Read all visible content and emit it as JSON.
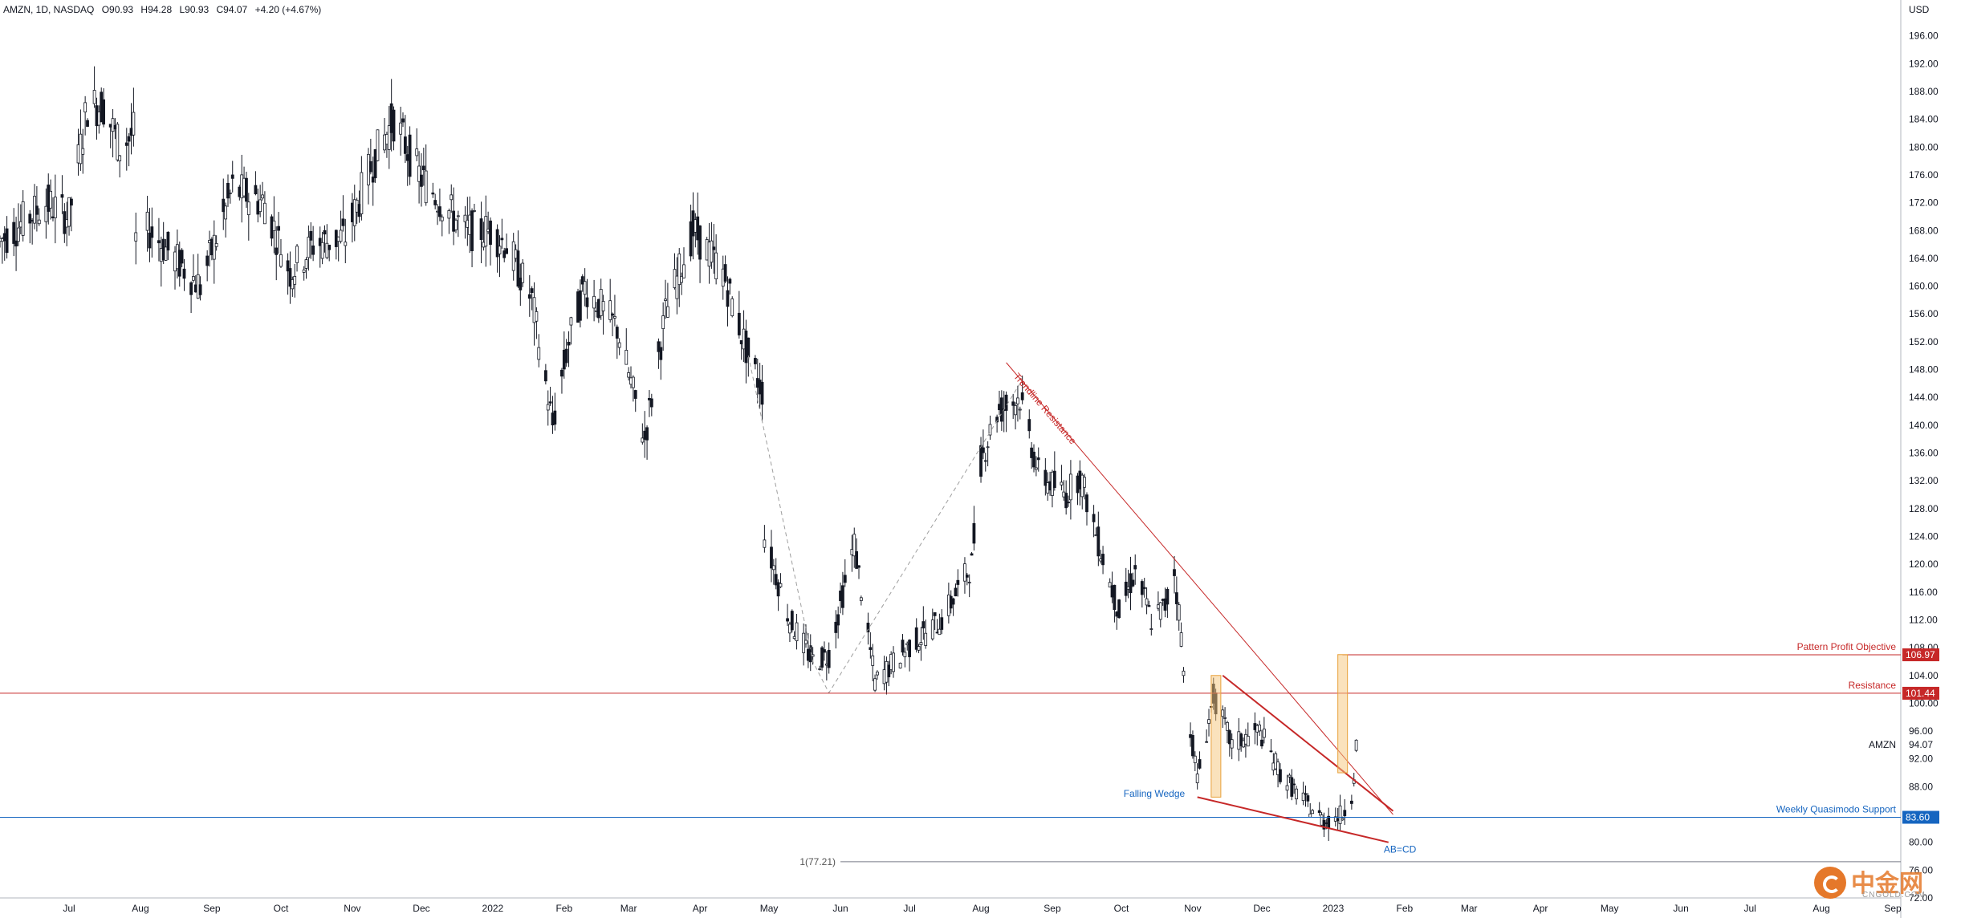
{
  "header": {
    "symbol": "AMZN, 1D, NASDAQ",
    "open": "O90.93",
    "high": "H94.28",
    "low": "L90.93",
    "close": "C94.07",
    "change": "+4.20 (+4.67%)"
  },
  "logo": {
    "name": "中金网",
    "sub": "CNGOLD.COM"
  },
  "colors": {
    "candle": "#131722",
    "resistance": "#c62828",
    "support": "#1565c0",
    "highlight": "#f5c57a",
    "guide": "#9e9e9e"
  },
  "chart_data": {
    "type": "candlestick",
    "ylabel": "USD",
    "ylim": [
      72,
      200
    ],
    "yticks": [
      "196.00",
      "192.00",
      "188.00",
      "184.00",
      "180.00",
      "176.00",
      "172.00",
      "168.00",
      "164.00",
      "160.00",
      "156.00",
      "152.00",
      "148.00",
      "144.00",
      "140.00",
      "136.00",
      "132.00",
      "128.00",
      "124.00",
      "120.00",
      "116.00",
      "112.00",
      "108.00",
      "104.00",
      "100.00",
      "96.00",
      "92.00",
      "88.00",
      "84.00",
      "80.00",
      "76.00",
      "72.00"
    ],
    "xticks": [
      {
        "label": "Jul",
        "date": "2021-07-01"
      },
      {
        "label": "Aug",
        "date": "2021-08-01"
      },
      {
        "label": "Sep",
        "date": "2021-09-01"
      },
      {
        "label": "Oct",
        "date": "2021-10-01"
      },
      {
        "label": "Nov",
        "date": "2021-11-01"
      },
      {
        "label": "Dec",
        "date": "2021-12-01"
      },
      {
        "label": "2022",
        "date": "2022-01-01"
      },
      {
        "label": "Feb",
        "date": "2022-02-01"
      },
      {
        "label": "Mar",
        "date": "2022-03-01"
      },
      {
        "label": "Apr",
        "date": "2022-04-01"
      },
      {
        "label": "May",
        "date": "2022-05-01"
      },
      {
        "label": "Jun",
        "date": "2022-06-01"
      },
      {
        "label": "Jul",
        "date": "2022-07-01"
      },
      {
        "label": "Aug",
        "date": "2022-08-01"
      },
      {
        "label": "Sep",
        "date": "2022-09-01"
      },
      {
        "label": "Oct",
        "date": "2022-10-01"
      },
      {
        "label": "Nov",
        "date": "2022-11-01"
      },
      {
        "label": "Dec",
        "date": "2022-12-01"
      },
      {
        "label": "2023",
        "date": "2023-01-01"
      },
      {
        "label": "Feb",
        "date": "2023-02-01"
      },
      {
        "label": "Mar",
        "date": "2023-03-01"
      },
      {
        "label": "Apr",
        "date": "2023-04-01"
      },
      {
        "label": "May",
        "date": "2023-05-01"
      },
      {
        "label": "Jun",
        "date": "2023-06-01"
      },
      {
        "label": "Jul",
        "date": "2023-07-01"
      },
      {
        "label": "Aug",
        "date": "2023-08-01"
      },
      {
        "label": "Sep",
        "date": "2023-09-01"
      }
    ],
    "xrange": [
      "2021-06-01",
      "2023-09-01"
    ],
    "candles": [
      [
        "2021-06-01",
        166.5
      ],
      [
        "2021-06-21",
        172
      ],
      [
        "2021-07-01",
        170
      ],
      [
        "2021-07-09",
        186
      ],
      [
        "2021-07-16",
        186
      ],
      [
        "2021-07-23",
        180
      ],
      [
        "2021-07-29",
        182
      ],
      [
        "2021-07-30",
        166.5
      ],
      [
        "2021-08-05",
        168
      ],
      [
        "2021-08-16",
        164
      ],
      [
        "2021-08-27",
        160
      ],
      [
        "2021-09-10",
        174
      ],
      [
        "2021-09-24",
        172
      ],
      [
        "2021-10-05",
        162
      ],
      [
        "2021-10-15",
        166
      ],
      [
        "2021-10-29",
        167
      ],
      [
        "2021-11-10",
        178
      ],
      [
        "2021-11-19",
        184
      ],
      [
        "2021-11-30",
        176
      ],
      [
        "2021-12-10",
        172
      ],
      [
        "2021-12-20",
        168
      ],
      [
        "2021-12-31",
        168
      ],
      [
        "2022-01-07",
        166
      ],
      [
        "2022-01-18",
        158
      ],
      [
        "2022-01-27",
        140
      ],
      [
        "2022-02-03",
        152
      ],
      [
        "2022-02-10",
        160
      ],
      [
        "2022-02-24",
        154
      ],
      [
        "2022-03-08",
        138
      ],
      [
        "2022-03-17",
        156
      ],
      [
        "2022-03-29",
        168
      ],
      [
        "2022-04-11",
        162
      ],
      [
        "2022-04-22",
        150
      ],
      [
        "2022-04-28",
        145
      ],
      [
        "2022-04-29",
        124
      ],
      [
        "2022-05-10",
        112
      ],
      [
        "2022-05-20",
        106
      ],
      [
        "2022-05-27",
        107
      ],
      [
        "2022-06-07",
        123
      ],
      [
        "2022-06-16",
        103
      ],
      [
        "2022-06-30",
        108
      ],
      [
        "2022-07-15",
        112
      ],
      [
        "2022-07-28",
        120
      ],
      [
        "2022-08-01",
        135
      ],
      [
        "2022-08-08",
        142
      ],
      [
        "2022-08-18",
        144
      ],
      [
        "2022-08-26",
        133
      ],
      [
        "2022-09-07",
        130
      ],
      [
        "2022-09-13",
        133
      ],
      [
        "2022-09-22",
        122
      ],
      [
        "2022-09-30",
        113
      ],
      [
        "2022-10-07",
        119
      ],
      [
        "2022-10-14",
        112
      ],
      [
        "2022-10-20",
        114
      ],
      [
        "2022-10-24",
        119
      ],
      [
        "2022-10-27",
        110
      ],
      [
        "2022-10-28",
        104
      ],
      [
        "2022-11-03",
        89
      ],
      [
        "2022-11-10",
        101
      ],
      [
        "2022-11-18",
        94
      ],
      [
        "2022-11-30",
        96
      ],
      [
        "2022-12-09",
        90
      ],
      [
        "2022-12-19",
        86
      ],
      [
        "2022-12-28",
        83
      ],
      [
        "2023-01-05",
        84
      ],
      [
        "2023-01-09",
        87
      ],
      [
        "2023-01-10",
        90
      ],
      [
        "2023-01-11",
        94
      ]
    ],
    "price_lines": [
      {
        "label": "Pattern Profit Objective",
        "value": 106.97,
        "tag": "106.97",
        "color": "#c62828"
      },
      {
        "label": "Resistance",
        "value": 101.44,
        "tag": "101.44",
        "color": "#c62828"
      },
      {
        "label": "Weekly Quasimodo Support",
        "value": 83.6,
        "tag": "83.60",
        "color": "#1565c0"
      }
    ],
    "last_price": {
      "label": "AMZN",
      "value": 94.07,
      "tag": "94.07"
    },
    "annotations": [
      {
        "text": "Trendline Resistance",
        "color": "#c62828"
      },
      {
        "text": "Falling Wedge",
        "color": "#1565c0"
      },
      {
        "text": "AB=CD",
        "color": "#1565c0"
      },
      {
        "text": "1(77.21)",
        "value": 77.21,
        "color": "#555555"
      }
    ]
  }
}
